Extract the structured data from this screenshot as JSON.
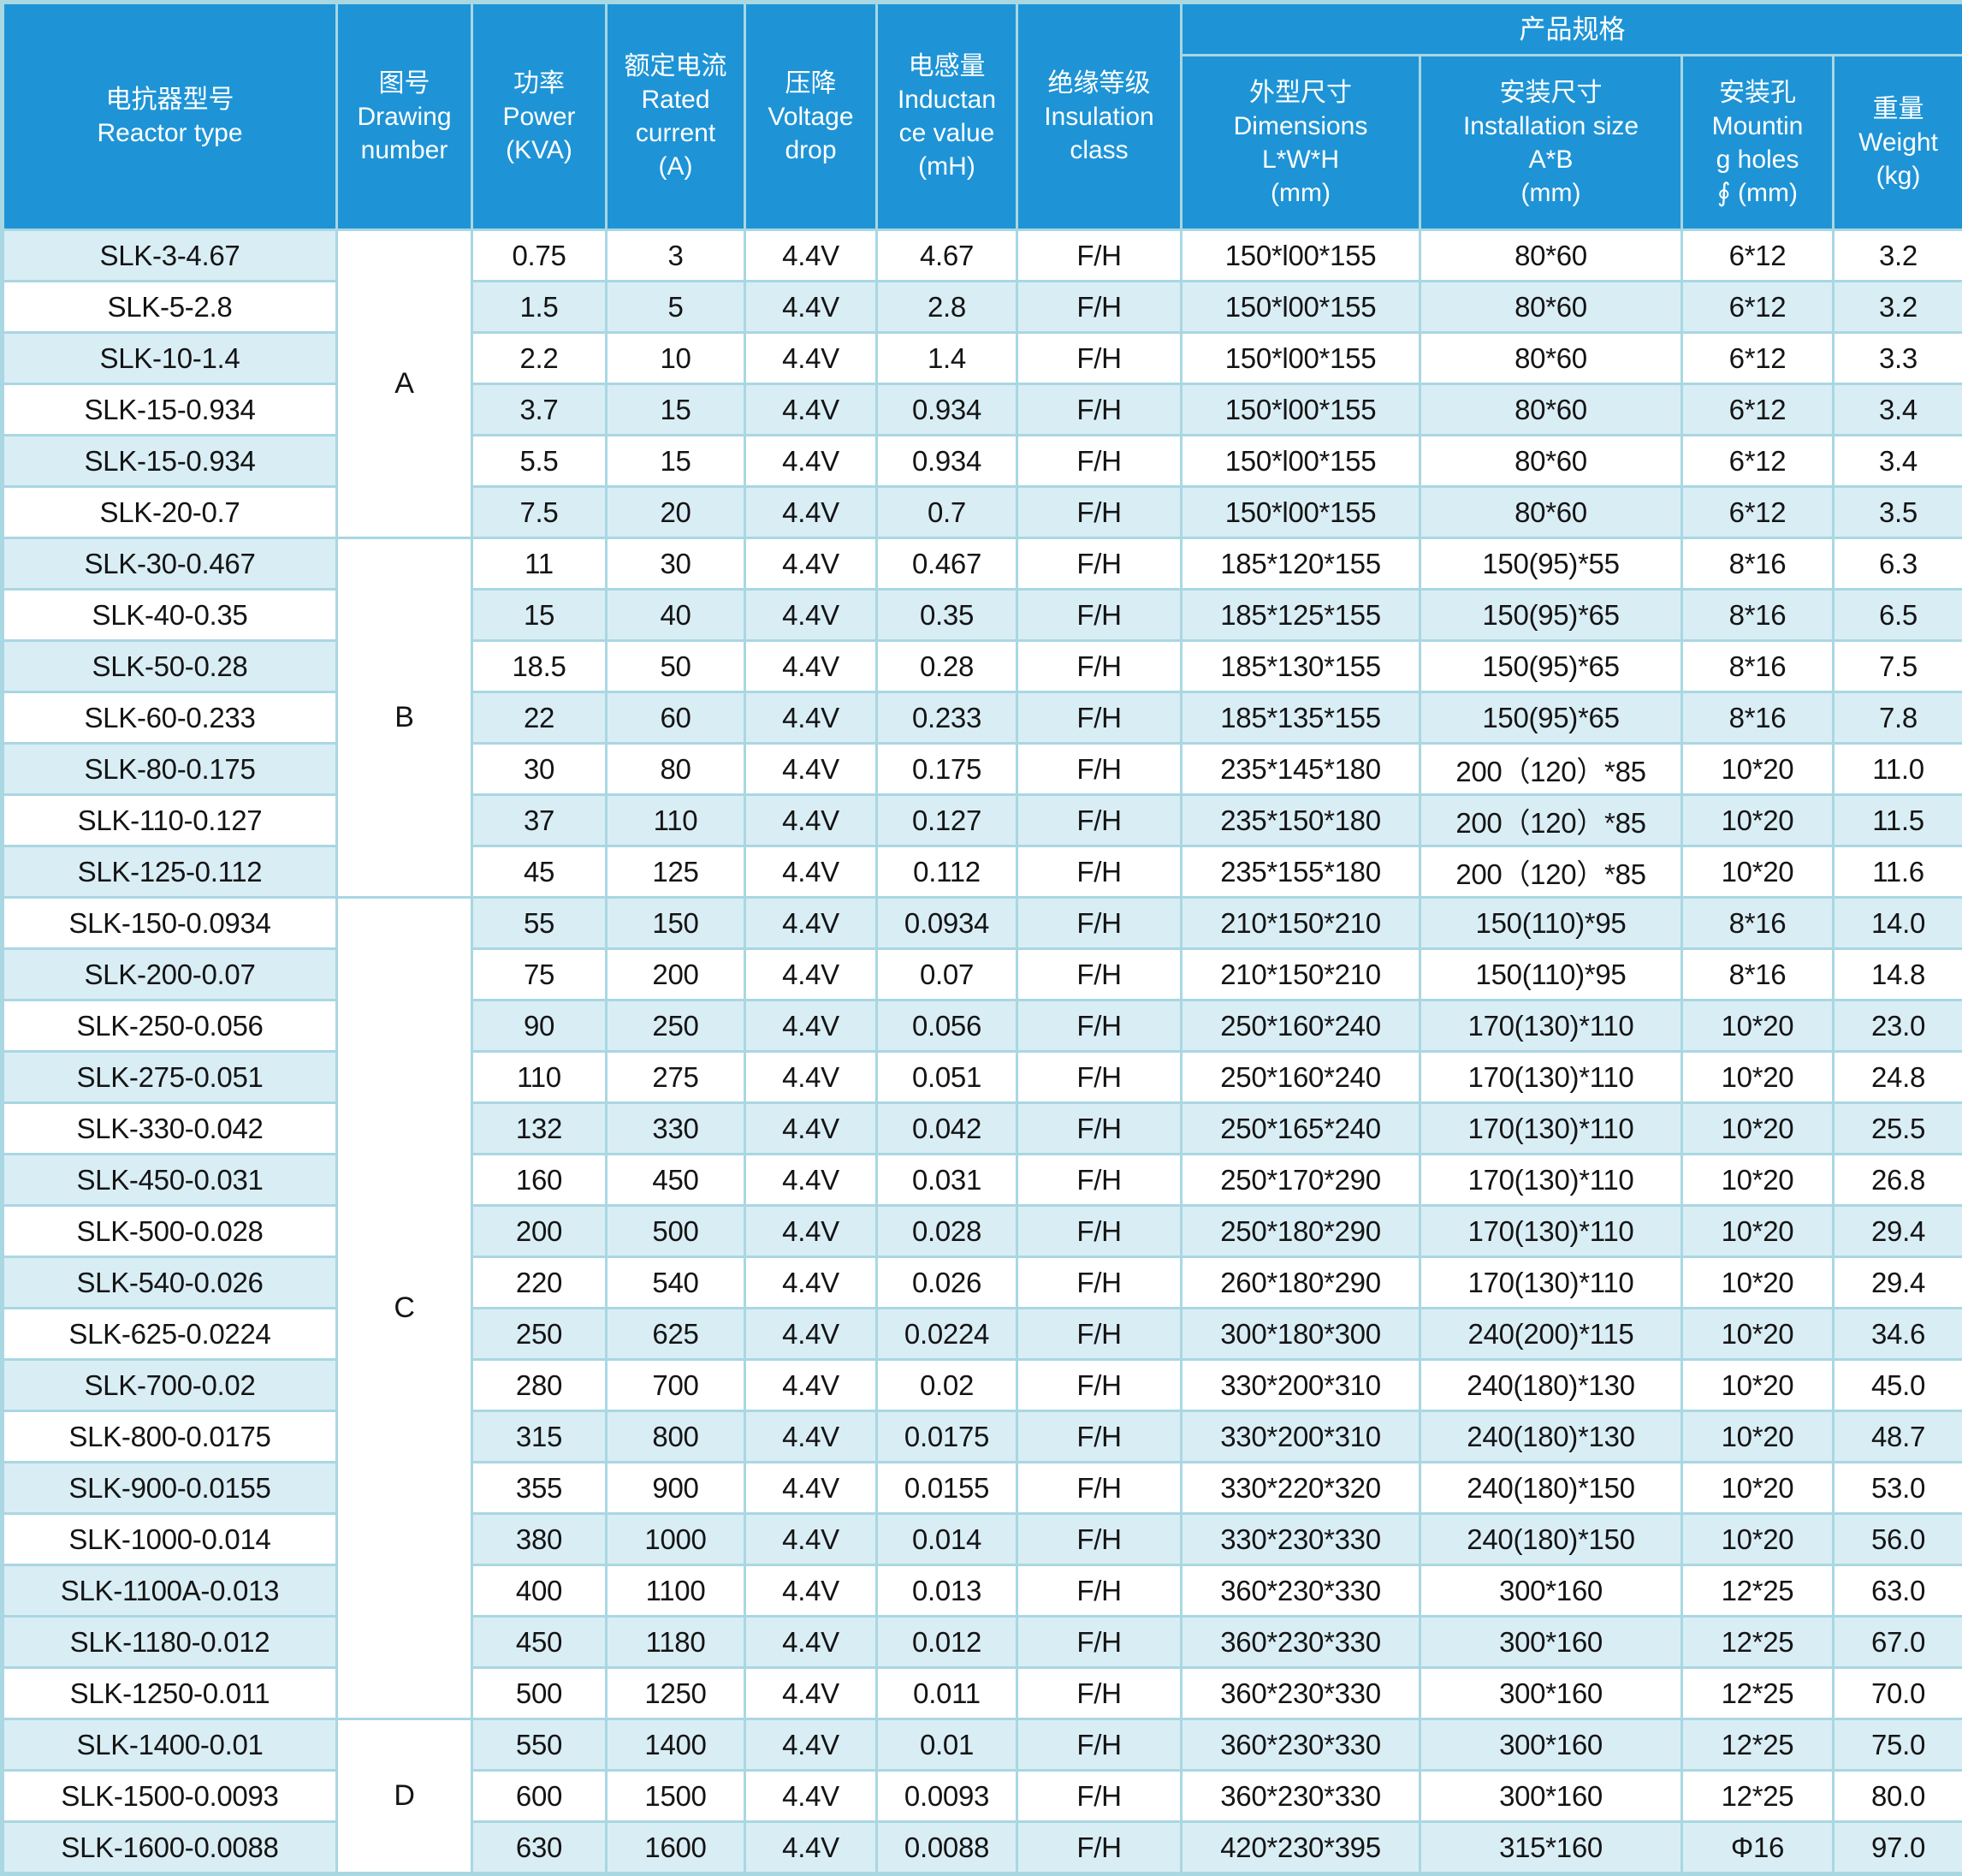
{
  "table_title": "SLK reactor specification table",
  "colors": {
    "header_bg": "#1e94d6",
    "header_text": "#ffffff",
    "row_tint": "#d9edf5",
    "row_base": "#ffffff",
    "border": "#a9d7e2",
    "body_text": "#141414"
  },
  "header": {
    "product_spec_group": "产品规格",
    "cols": [
      {
        "key": "type",
        "text": "电抗器型号\nReactor type"
      },
      {
        "key": "drawing",
        "text": "图号\nDrawing\nnumber"
      },
      {
        "key": "power",
        "text": "功率\nPower\n(KVA)"
      },
      {
        "key": "current",
        "text": "额定电流\nRated\ncurrent\n(A)"
      },
      {
        "key": "drop",
        "text": "压降\nVoltage\ndrop"
      },
      {
        "key": "inductance",
        "text": "电感量\nInductan\nce value\n(mH)"
      },
      {
        "key": "insulation",
        "text": "绝缘等级\nInsulation\nclass"
      },
      {
        "key": "dimensions",
        "text": "外型尺寸\nDimensions\nL*W*H\n(mm)"
      },
      {
        "key": "installation",
        "text": "安装尺寸\nInstallation size\nA*B\n(mm)"
      },
      {
        "key": "mounting",
        "text": "安装孔\nMountin\ng holes\n∮ (mm)"
      },
      {
        "key": "weight",
        "text": "重量\nWeight\n(kg)"
      }
    ]
  },
  "groups": [
    {
      "label": "A",
      "rows": 6
    },
    {
      "label": "B",
      "rows": 7
    },
    {
      "label": "C",
      "rows": 16
    },
    {
      "label": "D",
      "rows": 3
    }
  ],
  "rows": [
    [
      "SLK-3-4.67",
      "0.75",
      "3",
      "4.4V",
      "4.67",
      "F/H",
      "150*l00*155",
      "80*60",
      "6*12",
      "3.2"
    ],
    [
      "SLK-5-2.8",
      "1.5",
      "5",
      "4.4V",
      "2.8",
      "F/H",
      "150*l00*155",
      "80*60",
      "6*12",
      "3.2"
    ],
    [
      "SLK-10-1.4",
      "2.2",
      "10",
      "4.4V",
      "1.4",
      "F/H",
      "150*l00*155",
      "80*60",
      "6*12",
      "3.3"
    ],
    [
      "SLK-15-0.934",
      "3.7",
      "15",
      "4.4V",
      "0.934",
      "F/H",
      "150*l00*155",
      "80*60",
      "6*12",
      "3.4"
    ],
    [
      "SLK-15-0.934",
      "5.5",
      "15",
      "4.4V",
      "0.934",
      "F/H",
      "150*l00*155",
      "80*60",
      "6*12",
      "3.4"
    ],
    [
      "SLK-20-0.7",
      "7.5",
      "20",
      "4.4V",
      "0.7",
      "F/H",
      "150*l00*155",
      "80*60",
      "6*12",
      "3.5"
    ],
    [
      "SLK-30-0.467",
      "11",
      "30",
      "4.4V",
      "0.467",
      "F/H",
      "185*120*155",
      "150(95)*55",
      "8*16",
      "6.3"
    ],
    [
      "SLK-40-0.35",
      "15",
      "40",
      "4.4V",
      "0.35",
      "F/H",
      "185*125*155",
      "150(95)*65",
      "8*16",
      "6.5"
    ],
    [
      "SLK-50-0.28",
      "18.5",
      "50",
      "4.4V",
      "0.28",
      "F/H",
      "185*130*155",
      "150(95)*65",
      "8*16",
      "7.5"
    ],
    [
      "SLK-60-0.233",
      "22",
      "60",
      "4.4V",
      "0.233",
      "F/H",
      "185*135*155",
      "150(95)*65",
      "8*16",
      "7.8"
    ],
    [
      "SLK-80-0.175",
      "30",
      "80",
      "4.4V",
      "0.175",
      "F/H",
      "235*145*180",
      "200（120）*85",
      "10*20",
      "11.0"
    ],
    [
      "SLK-110-0.127",
      "37",
      "110",
      "4.4V",
      "0.127",
      "F/H",
      "235*150*180",
      "200（120）*85",
      "10*20",
      "11.5"
    ],
    [
      "SLK-125-0.112",
      "45",
      "125",
      "4.4V",
      "0.112",
      "F/H",
      "235*155*180",
      "200（120）*85",
      "10*20",
      "11.6"
    ],
    [
      "SLK-150-0.0934",
      "55",
      "150",
      "4.4V",
      "0.0934",
      "F/H",
      "210*150*210",
      "150(110)*95",
      "8*16",
      "14.0"
    ],
    [
      "SLK-200-0.07",
      "75",
      "200",
      "4.4V",
      "0.07",
      "F/H",
      "210*150*210",
      "150(110)*95",
      "8*16",
      "14.8"
    ],
    [
      "SLK-250-0.056",
      "90",
      "250",
      "4.4V",
      "0.056",
      "F/H",
      "250*160*240",
      "170(130)*110",
      "10*20",
      "23.0"
    ],
    [
      "SLK-275-0.051",
      "110",
      "275",
      "4.4V",
      "0.051",
      "F/H",
      "250*160*240",
      "170(130)*110",
      "10*20",
      "24.8"
    ],
    [
      "SLK-330-0.042",
      "132",
      "330",
      "4.4V",
      "0.042",
      "F/H",
      "250*165*240",
      "170(130)*110",
      "10*20",
      "25.5"
    ],
    [
      "SLK-450-0.031",
      "160",
      "450",
      "4.4V",
      "0.031",
      "F/H",
      "250*170*290",
      "170(130)*110",
      "10*20",
      "26.8"
    ],
    [
      "SLK-500-0.028",
      "200",
      "500",
      "4.4V",
      "0.028",
      "F/H",
      "250*180*290",
      "170(130)*110",
      "10*20",
      "29.4"
    ],
    [
      "SLK-540-0.026",
      "220",
      "540",
      "4.4V",
      "0.026",
      "F/H",
      "260*180*290",
      "170(130)*110",
      "10*20",
      "29.4"
    ],
    [
      "SLK-625-0.0224",
      "250",
      "625",
      "4.4V",
      "0.0224",
      "F/H",
      "300*180*300",
      "240(200)*115",
      "10*20",
      "34.6"
    ],
    [
      "SLK-700-0.02",
      "280",
      "700",
      "4.4V",
      "0.02",
      "F/H",
      "330*200*310",
      "240(180)*130",
      "10*20",
      "45.0"
    ],
    [
      "SLK-800-0.0175",
      "315",
      "800",
      "4.4V",
      "0.0175",
      "F/H",
      "330*200*310",
      "240(180)*130",
      "10*20",
      "48.7"
    ],
    [
      "SLK-900-0.0155",
      "355",
      "900",
      "4.4V",
      "0.0155",
      "F/H",
      "330*220*320",
      "240(180)*150",
      "10*20",
      "53.0"
    ],
    [
      "SLK-1000-0.014",
      "380",
      "1000",
      "4.4V",
      "0.014",
      "F/H",
      "330*230*330",
      "240(180)*150",
      "10*20",
      "56.0"
    ],
    [
      "SLK-1100A-0.013",
      "400",
      "1100",
      "4.4V",
      "0.013",
      "F/H",
      "360*230*330",
      "300*160",
      "12*25",
      "63.0"
    ],
    [
      "SLK-1180-0.012",
      "450",
      "1180",
      "4.4V",
      "0.012",
      "F/H",
      "360*230*330",
      "300*160",
      "12*25",
      "67.0"
    ],
    [
      "SLK-1250-0.011",
      "500",
      "1250",
      "4.4V",
      "0.011",
      "F/H",
      "360*230*330",
      "300*160",
      "12*25",
      "70.0"
    ],
    [
      "SLK-1400-0.01",
      "550",
      "1400",
      "4.4V",
      "0.01",
      "F/H",
      "360*230*330",
      "300*160",
      "12*25",
      "75.0"
    ],
    [
      "SLK-1500-0.0093",
      "600",
      "1500",
      "4.4V",
      "0.0093",
      "F/H",
      "360*230*330",
      "300*160",
      "12*25",
      "80.0"
    ],
    [
      "SLK-1600-0.0088",
      "630",
      "1600",
      "4.4V",
      "0.0088",
      "F/H",
      "420*230*395",
      "315*160",
      "Φ16",
      "97.0"
    ]
  ]
}
